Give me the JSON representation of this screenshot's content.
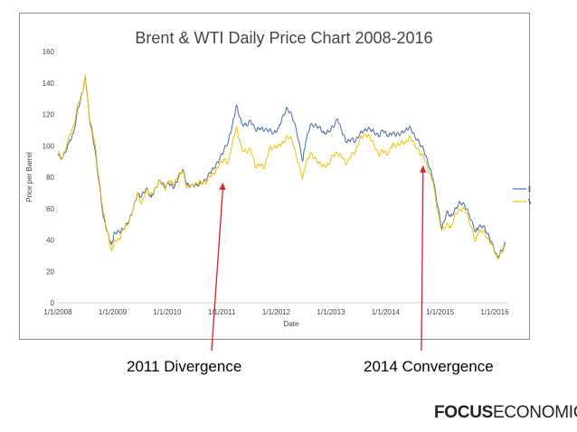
{
  "chart_data": {
    "type": "line",
    "title": "Brent & WTI Daily Price Chart 2008-2016",
    "xlabel": "Date",
    "ylabel": "Price per Barrel",
    "xlim": [
      "2008-01-01",
      "2016-04-01"
    ],
    "ylim": [
      0,
      160
    ],
    "yticks": [
      "0",
      "20",
      "40",
      "60",
      "80",
      "100",
      "120",
      "140",
      "160"
    ],
    "xticks": [
      "1/1/2008",
      "1/1/2009",
      "1/1/2010",
      "1/1/2011",
      "1/1/2012",
      "1/1/2013",
      "1/1/2014",
      "1/1/2015",
      "1/1/2016"
    ],
    "grid": false,
    "legend_position": "right",
    "series": [
      {
        "name": "Brent",
        "color": "#4a6aa8",
        "x": [
          "2008-01-01",
          "2008-02-01",
          "2008-03-15",
          "2008-04-15",
          "2008-05-15",
          "2008-06-15",
          "2008-07-03",
          "2008-08-01",
          "2008-09-01",
          "2008-10-01",
          "2008-11-01",
          "2008-12-01",
          "2008-12-24",
          "2009-01-15",
          "2009-02-15",
          "2009-03-15",
          "2009-04-15",
          "2009-05-15",
          "2009-06-15",
          "2009-07-15",
          "2009-08-15",
          "2009-09-15",
          "2009-10-15",
          "2009-11-15",
          "2009-12-15",
          "2010-01-15",
          "2010-02-15",
          "2010-03-15",
          "2010-04-15",
          "2010-05-15",
          "2010-06-15",
          "2010-07-15",
          "2010-08-15",
          "2010-09-15",
          "2010-10-15",
          "2010-11-15",
          "2010-12-15",
          "2011-01-15",
          "2011-02-15",
          "2011-03-15",
          "2011-04-10",
          "2011-05-15",
          "2011-06-15",
          "2011-07-15",
          "2011-08-15",
          "2011-09-15",
          "2011-10-15",
          "2011-11-15",
          "2011-12-15",
          "2012-01-15",
          "2012-02-15",
          "2012-03-15",
          "2012-04-15",
          "2012-05-15",
          "2012-06-25",
          "2012-07-15",
          "2012-08-15",
          "2012-09-15",
          "2012-10-15",
          "2012-11-15",
          "2012-12-15",
          "2013-01-15",
          "2013-02-15",
          "2013-03-15",
          "2013-04-15",
          "2013-05-15",
          "2013-06-15",
          "2013-07-15",
          "2013-08-15",
          "2013-09-15",
          "2013-10-15",
          "2013-11-15",
          "2013-12-15",
          "2014-01-15",
          "2014-02-15",
          "2014-03-15",
          "2014-04-15",
          "2014-05-15",
          "2014-06-15",
          "2014-07-15",
          "2014-08-15",
          "2014-09-15",
          "2014-10-15",
          "2014-11-15",
          "2014-12-15",
          "2015-01-13",
          "2015-02-15",
          "2015-03-15",
          "2015-04-15",
          "2015-05-15",
          "2015-06-15",
          "2015-07-15",
          "2015-08-24",
          "2015-09-15",
          "2015-10-15",
          "2015-11-15",
          "2015-12-15",
          "2016-01-20",
          "2016-02-15",
          "2016-03-15"
        ],
        "values": [
          94,
          92,
          102,
          108,
          124,
          134,
          144,
          116,
          100,
          78,
          54,
          44,
          37,
          45,
          45,
          47,
          51,
          58,
          69,
          68,
          73,
          67,
          73,
          78,
          74,
          76,
          73,
          79,
          85,
          75,
          75,
          75,
          76,
          78,
          83,
          86,
          91,
          97,
          103,
          114,
          126,
          114,
          113,
          116,
          110,
          111,
          110,
          110,
          108,
          111,
          119,
          124,
          119,
          110,
          90,
          102,
          113,
          113,
          112,
          108,
          109,
          112,
          117,
          109,
          102,
          104,
          103,
          108,
          110,
          111,
          109,
          106,
          110,
          106,
          108,
          107,
          108,
          110,
          112,
          106,
          102,
          97,
          88,
          79,
          62,
          47,
          58,
          55,
          60,
          64,
          62,
          56,
          45,
          48,
          49,
          44,
          38,
          29,
          33,
          38
        ]
      },
      {
        "name": "WTI",
        "color": "#f5c200",
        "x": [
          "2008-01-01",
          "2008-02-01",
          "2008-03-15",
          "2008-04-15",
          "2008-05-15",
          "2008-06-15",
          "2008-07-03",
          "2008-08-01",
          "2008-09-01",
          "2008-10-01",
          "2008-11-01",
          "2008-12-01",
          "2008-12-24",
          "2009-01-15",
          "2009-02-15",
          "2009-03-15",
          "2009-04-15",
          "2009-05-15",
          "2009-06-15",
          "2009-07-15",
          "2009-08-15",
          "2009-09-15",
          "2009-10-15",
          "2009-11-15",
          "2009-12-15",
          "2010-01-15",
          "2010-02-15",
          "2010-03-15",
          "2010-04-15",
          "2010-05-15",
          "2010-06-15",
          "2010-07-15",
          "2010-08-15",
          "2010-09-15",
          "2010-10-15",
          "2010-11-15",
          "2010-12-15",
          "2011-01-15",
          "2011-02-15",
          "2011-03-15",
          "2011-04-10",
          "2011-05-15",
          "2011-06-15",
          "2011-07-15",
          "2011-08-15",
          "2011-09-15",
          "2011-10-15",
          "2011-11-15",
          "2011-12-15",
          "2012-01-15",
          "2012-02-15",
          "2012-03-15",
          "2012-04-15",
          "2012-05-15",
          "2012-06-25",
          "2012-07-15",
          "2012-08-15",
          "2012-09-15",
          "2012-10-15",
          "2012-11-15",
          "2012-12-15",
          "2013-01-15",
          "2013-02-15",
          "2013-03-15",
          "2013-04-15",
          "2013-05-15",
          "2013-06-15",
          "2013-07-15",
          "2013-08-15",
          "2013-09-15",
          "2013-10-15",
          "2013-11-15",
          "2013-12-15",
          "2014-01-15",
          "2014-02-15",
          "2014-03-15",
          "2014-04-15",
          "2014-05-15",
          "2014-06-15",
          "2014-07-15",
          "2014-08-15",
          "2014-09-15",
          "2014-10-15",
          "2014-11-15",
          "2014-12-15",
          "2015-01-13",
          "2015-02-15",
          "2015-03-15",
          "2015-04-15",
          "2015-05-15",
          "2015-06-15",
          "2015-07-15",
          "2015-08-24",
          "2015-09-15",
          "2015-10-15",
          "2015-11-15",
          "2015-12-15",
          "2016-01-20",
          "2016-02-15",
          "2016-03-15"
        ],
        "values": [
          96,
          92,
          106,
          112,
          127,
          134,
          145,
          117,
          104,
          80,
          57,
          44,
          33,
          40,
          40,
          47,
          50,
          58,
          70,
          63,
          72,
          69,
          73,
          78,
          72,
          78,
          75,
          81,
          84,
          73,
          75,
          76,
          77,
          76,
          81,
          82,
          88,
          91,
          89,
          103,
          112,
          98,
          96,
          98,
          86,
          88,
          86,
          98,
          99,
          100,
          102,
          106,
          104,
          93,
          79,
          88,
          95,
          92,
          89,
          87,
          88,
          94,
          95,
          93,
          88,
          94,
          96,
          105,
          107,
          106,
          101,
          94,
          97,
          94,
          101,
          100,
          102,
          102,
          106,
          101,
          96,
          93,
          84,
          77,
          58,
          46,
          50,
          48,
          57,
          59,
          60,
          52,
          39,
          45,
          46,
          41,
          37,
          28,
          32,
          36
        ]
      }
    ]
  },
  "annotations": {
    "divergence": "2011 Divergence",
    "convergence": "2014 Convergence"
  },
  "colors": {
    "arrow": "#e02020",
    "axis": "#d0d0d0",
    "tick_text": "#444444"
  },
  "brand": {
    "bold_part": "FOCUS",
    "normal_part": "ECONOMICS"
  }
}
